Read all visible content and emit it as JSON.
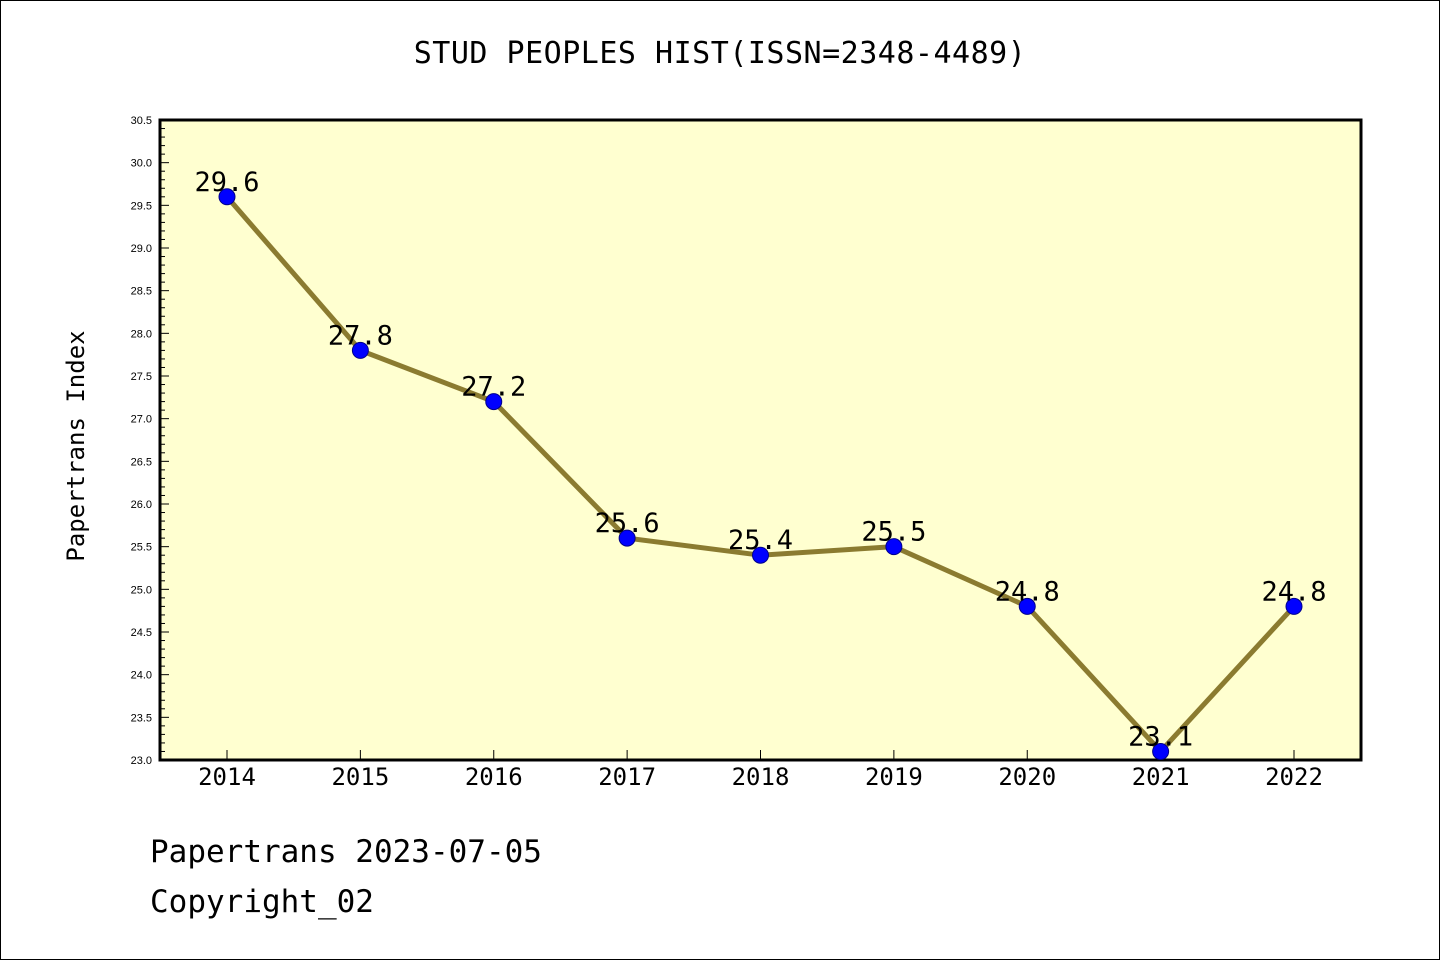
{
  "title": "STUD PEOPLES HIST(ISSN=2348-4489)",
  "footer": {
    "line1": "Papertrans 2023-07-05",
    "line2": "Copyright_02"
  },
  "colors": {
    "plot_background": "#ffffd0",
    "line": "#8b7b30",
    "marker": "#0000ff",
    "axis": "#000000"
  },
  "chart_data": {
    "type": "line",
    "title": "STUD PEOPLES HIST(ISSN=2348-4489)",
    "xlabel": "",
    "ylabel": "Papertrans Index",
    "categories": [
      "2014",
      "2015",
      "2016",
      "2017",
      "2018",
      "2019",
      "2020",
      "2021",
      "2022"
    ],
    "series": [
      {
        "values": [
          29.6,
          27.8,
          27.2,
          25.6,
          25.4,
          25.5,
          24.8,
          23.1,
          24.8
        ],
        "labels": [
          "29.6",
          "27.8",
          "27.2",
          "25.6",
          "25.4",
          "25.5",
          "24.8",
          "23.1",
          "24.8"
        ]
      }
    ],
    "ylim": [
      23.0,
      30.5
    ],
    "yticks": [
      "23.0",
      "23.5",
      "24.0",
      "24.5",
      "25.0",
      "25.5",
      "26.0",
      "26.5",
      "27.0",
      "27.5",
      "28.0",
      "28.5",
      "29.0",
      "29.5",
      "30.0",
      "30.5"
    ],
    "grid": false,
    "legend": "none"
  }
}
